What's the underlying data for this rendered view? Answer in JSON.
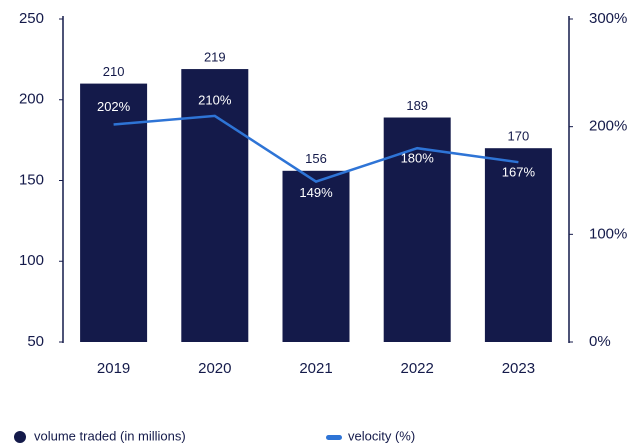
{
  "chart_data": {
    "type": "bar",
    "categories": [
      "2019",
      "2020",
      "2021",
      "2022",
      "2023"
    ],
    "series": [
      {
        "name": "volume traded (in millions)",
        "type": "bar",
        "color": "#141a4a",
        "values": [
          210,
          219,
          156,
          189,
          170
        ]
      },
      {
        "name": "velocity (%)",
        "type": "line",
        "axis": "y2",
        "color": "#2e74d6",
        "values": [
          202,
          210,
          149,
          180,
          167
        ],
        "value_labels": [
          "202%",
          "210%",
          "149%",
          "180%",
          "167%"
        ]
      }
    ],
    "ylim": [
      50,
      250
    ],
    "yticks": [
      50,
      100,
      150,
      200,
      250
    ],
    "y2lim": [
      0,
      300
    ],
    "y2ticks": [
      {
        "value": 0,
        "label": "0%"
      },
      {
        "value": 100,
        "label": "100%"
      },
      {
        "value": 200,
        "label": "200%"
      },
      {
        "value": 300,
        "label": "300%"
      }
    ]
  }
}
